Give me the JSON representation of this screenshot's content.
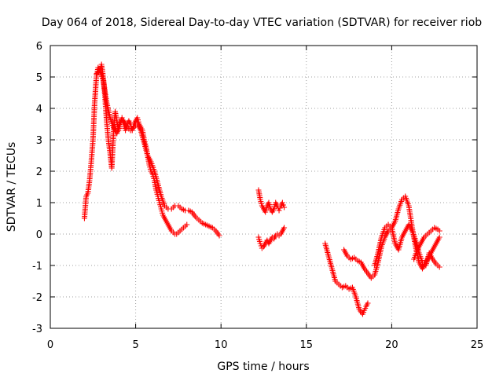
{
  "chart_data": {
    "type": "scatter",
    "title": "Day 064 of 2018, Sidereal Day-to-day VTEC variation (SDTVAR) for receiver riob",
    "xlabel": "GPS time / hours",
    "ylabel": "SDTVAR / TECUs",
    "xlim": [
      0,
      25
    ],
    "ylim": [
      -3,
      6
    ],
    "x_ticks": [
      0,
      5,
      10,
      15,
      20,
      25
    ],
    "y_ticks": [
      -3,
      -2,
      -1,
      0,
      1,
      2,
      3,
      4,
      5,
      6
    ],
    "grid": true,
    "marker": "plus",
    "color": "#ff0000",
    "series": [
      {
        "name": "SDTVAR",
        "segments": [
          {
            "x": [
              2.0,
              2.1,
              2.2,
              2.3,
              2.4,
              2.5,
              2.6,
              2.7,
              2.8,
              2.9,
              3.0,
              3.1,
              3.2,
              3.3,
              3.4,
              3.5,
              3.6,
              3.7,
              3.8,
              3.9,
              4.0,
              4.1,
              4.2,
              4.3,
              4.4,
              4.5,
              4.6,
              4.7,
              4.8,
              4.9,
              5.0,
              5.1,
              5.2,
              5.3,
              5.4,
              5.5,
              5.6,
              5.7,
              5.8,
              5.9,
              6.0,
              6.1,
              6.2,
              6.3,
              6.4,
              6.5,
              6.6,
              6.7,
              6.8,
              6.9,
              7.0,
              7.1,
              7.2,
              7.3,
              7.4,
              7.5,
              7.6,
              7.7,
              7.8,
              7.9,
              8.0
            ],
            "y": [
              0.5,
              1.2,
              1.3,
              1.7,
              2.3,
              3.0,
              4.2,
              5.0,
              5.3,
              5.2,
              5.4,
              5.0,
              4.4,
              3.6,
              3.0,
              2.6,
              2.1,
              3.2,
              3.9,
              3.6,
              3.3,
              3.5,
              3.7,
              3.5,
              3.3,
              3.5,
              3.6,
              3.5,
              3.3,
              3.5,
              3.6,
              3.7,
              3.5,
              3.4,
              3.3,
              3.0,
              2.8,
              2.5,
              2.2,
              2.0,
              1.9,
              1.7,
              1.4,
              1.2,
              1.0,
              0.8,
              0.6,
              0.5,
              0.4,
              0.3,
              0.2,
              0.1,
              0.05,
              0.0,
              0.0,
              0.05,
              0.1,
              0.15,
              0.2,
              0.25,
              0.3
            ]
          },
          {
            "x": [
              2.7,
              2.9,
              3.1,
              3.3,
              3.5,
              3.7,
              3.9,
              4.1,
              4.3,
              4.5,
              4.7,
              4.9,
              5.1,
              5.3,
              5.5,
              5.7,
              5.9,
              6.1,
              6.3,
              6.5,
              6.7,
              6.9,
              7.1,
              7.3,
              7.5,
              7.7,
              7.9,
              8.1,
              8.3,
              8.5,
              8.7,
              8.9,
              9.1,
              9.3,
              9.5,
              9.7,
              9.9
            ],
            "y": [
              5.1,
              5.2,
              4.9,
              4.2,
              3.7,
              3.4,
              3.2,
              3.6,
              3.6,
              3.4,
              3.3,
              3.4,
              3.5,
              3.3,
              2.9,
              2.5,
              2.3,
              2.0,
              1.6,
              1.2,
              0.9,
              0.8,
              0.8,
              0.9,
              0.9,
              0.8,
              0.75,
              0.75,
              0.7,
              0.55,
              0.45,
              0.35,
              0.3,
              0.25,
              0.2,
              0.1,
              -0.05
            ]
          },
          {
            "x": [
              12.2,
              12.3,
              12.4,
              12.5,
              12.6,
              12.7,
              12.8,
              12.9,
              13.0,
              13.1,
              13.2,
              13.3,
              13.4,
              13.5,
              13.6,
              13.7
            ],
            "y": [
              1.4,
              1.1,
              0.9,
              0.8,
              0.7,
              0.9,
              1.0,
              0.8,
              0.7,
              0.8,
              1.0,
              0.9,
              0.75,
              0.9,
              1.0,
              0.85
            ]
          },
          {
            "x": [
              12.2,
              12.3,
              12.4,
              12.5,
              12.6,
              12.7,
              12.8,
              12.9,
              13.0,
              13.1,
              13.2,
              13.3,
              13.4,
              13.5,
              13.6,
              13.7
            ],
            "y": [
              -0.1,
              -0.3,
              -0.45,
              -0.4,
              -0.3,
              -0.2,
              -0.3,
              -0.2,
              -0.1,
              -0.15,
              -0.05,
              0.0,
              -0.05,
              0.0,
              0.1,
              0.2
            ]
          },
          {
            "x": [
              16.1,
              16.3,
              16.5,
              16.7,
              16.9,
              17.1,
              17.3,
              17.5,
              17.7,
              17.9,
              18.1,
              18.3,
              18.5,
              18.6
            ],
            "y": [
              -0.3,
              -0.7,
              -1.1,
              -1.5,
              -1.6,
              -1.7,
              -1.65,
              -1.75,
              -1.7,
              -2.0,
              -2.4,
              -2.55,
              -2.3,
              -2.2
            ]
          },
          {
            "x": [
              17.2,
              17.4,
              17.6,
              17.8,
              18.0,
              18.2,
              18.4,
              18.6,
              18.8,
              19.0,
              19.2,
              19.4,
              19.6,
              19.8,
              20.0,
              20.2,
              20.4,
              20.6,
              20.8,
              21.0,
              21.2,
              21.4,
              21.6,
              21.8,
              22.0,
              22.2,
              22.4,
              22.6,
              22.8
            ],
            "y": [
              -0.5,
              -0.7,
              -0.8,
              -0.75,
              -0.85,
              -0.9,
              -1.1,
              -1.25,
              -1.4,
              -1.3,
              -0.9,
              -0.4,
              -0.1,
              0.1,
              0.2,
              0.4,
              0.8,
              1.1,
              1.2,
              0.9,
              0.2,
              -0.4,
              -0.9,
              -1.1,
              -0.9,
              -0.7,
              -0.5,
              -0.3,
              -0.1
            ]
          },
          {
            "x": [
              19.0,
              19.2,
              19.4,
              19.6,
              19.8,
              20.0,
              20.2,
              20.4,
              20.6,
              20.8,
              21.0,
              21.2,
              21.4,
              21.6,
              21.8,
              22.0,
              22.2,
              22.4,
              22.6,
              22.8
            ],
            "y": [
              -1.0,
              -0.6,
              -0.1,
              0.2,
              0.3,
              0.2,
              -0.3,
              -0.5,
              -0.1,
              0.1,
              0.3,
              0.1,
              -0.2,
              -0.6,
              -0.9,
              -1.0,
              -0.6,
              -0.8,
              -0.95,
              -1.05
            ]
          },
          {
            "x": [
              21.3,
              21.5,
              21.7,
              21.9,
              22.1,
              22.3,
              22.5,
              22.7,
              22.8
            ],
            "y": [
              -0.8,
              -0.5,
              -0.3,
              -0.1,
              0.0,
              0.1,
              0.2,
              0.15,
              0.1
            ]
          }
        ]
      }
    ]
  }
}
